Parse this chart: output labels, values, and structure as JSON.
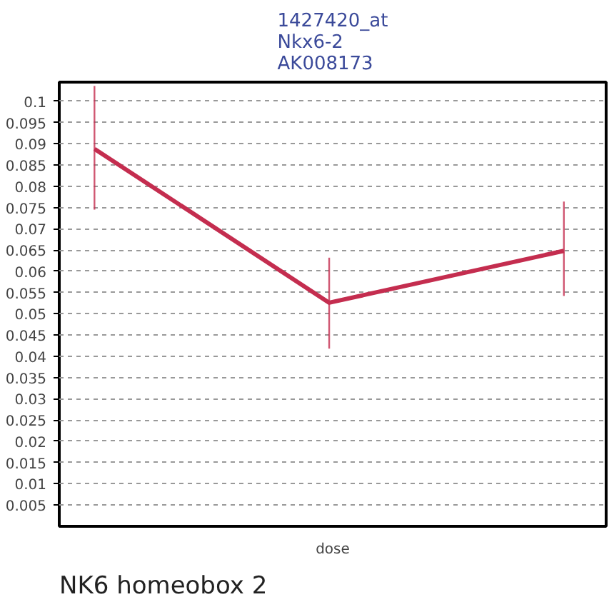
{
  "chart_data": {
    "type": "line",
    "title": "1427420_at\nNkx6-2\nAK008173",
    "xlabel": "dose",
    "annotations": [
      "NK6 homeobox 2"
    ],
    "categories": [
      null,
      null,
      null
    ],
    "series": [
      {
        "color": "#c42d4f",
        "values": [
          0.0888,
          0.0526,
          0.0648
        ],
        "errors": [
          [
            0.0745,
            0.1036
          ],
          [
            0.0418,
            0.0632
          ],
          [
            0.0542,
            0.0764
          ]
        ]
      }
    ],
    "ylim": [
      0,
      0.1045
    ],
    "yticks": [
      0.005,
      0.01,
      0.015,
      0.02,
      0.025,
      0.03,
      0.035,
      0.04,
      0.045,
      0.05,
      0.055,
      0.06,
      0.065,
      0.07,
      0.075,
      0.08,
      0.085,
      0.09,
      0.095,
      0.1
    ],
    "grid": "y",
    "marker": "none",
    "line_style": "solid"
  }
}
